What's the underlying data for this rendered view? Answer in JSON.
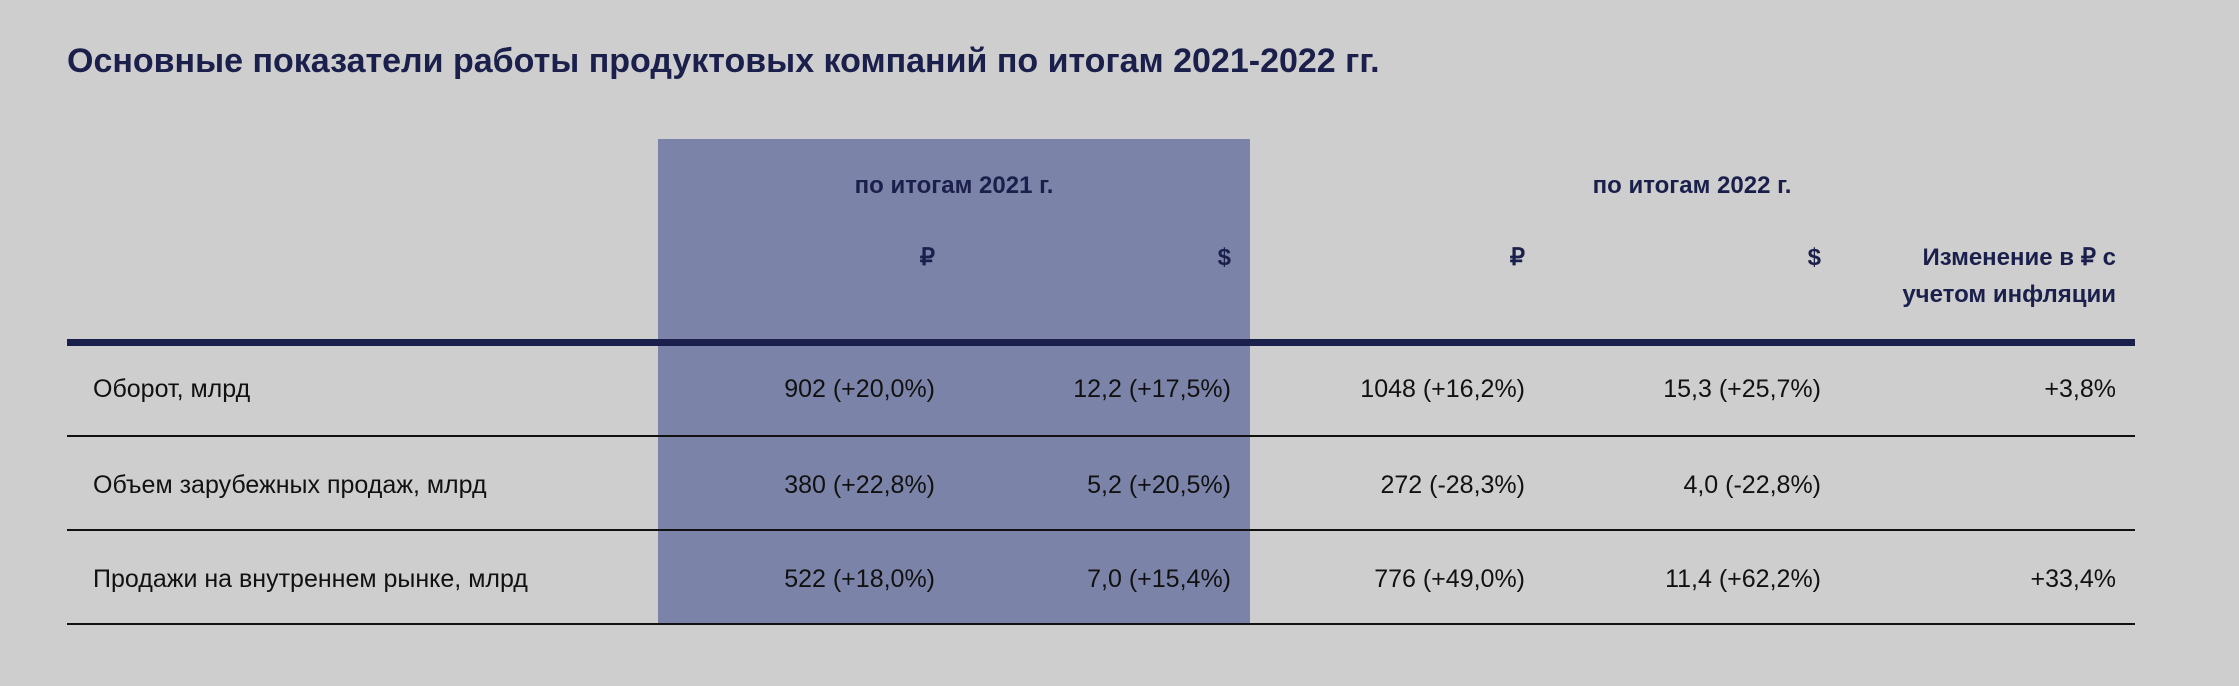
{
  "title": "Основные показатели работы продуктовых компаний по итогам 2021-2022 гг.",
  "table": {
    "group_headers": [
      "по итогам 2021 г.",
      "по итогам 2022 г."
    ],
    "column_headers": [
      "₽",
      "$",
      "₽",
      "$",
      "Изменение в ₽ с учетом инфляции"
    ],
    "rows": [
      [
        "Оборот, млрд",
        "902 (+20,0%)",
        "12,2 (+17,5%)",
        "1048 (+16,2%)",
        "15,3 (+25,7%)",
        "+3,8%"
      ],
      [
        "Объем зарубежных продаж, млрд",
        "380 (+22,8%)",
        "5,2 (+20,5%)",
        "272 (-28,3%)",
        "4,0 (-22,8%)"
      ],
      [
        "Продажи на внутреннем рынке, млрд",
        "522 (+18,0%)",
        "7,0 (+15,4%)",
        "776 (+49,0%)",
        "11,4 (+62,2%)",
        "+33,4%"
      ]
    ]
  }
}
